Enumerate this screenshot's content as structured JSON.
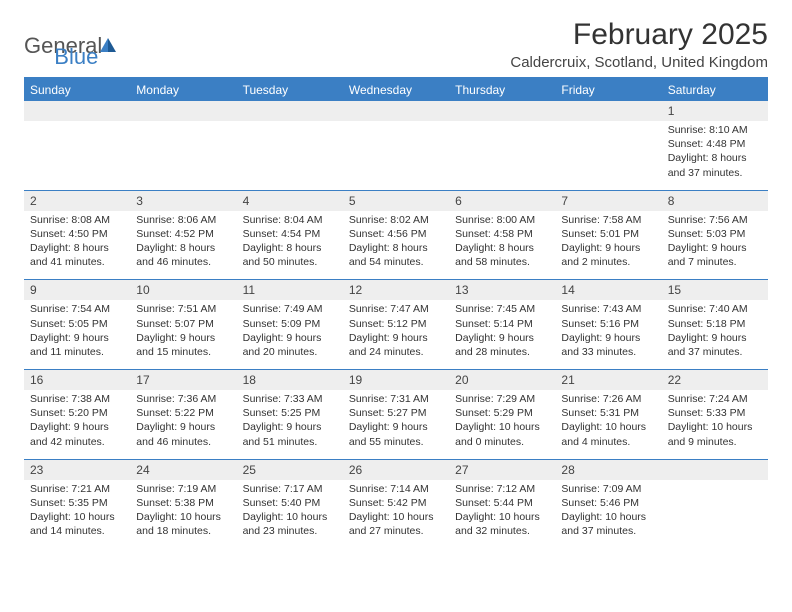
{
  "logo": {
    "text_general": "General",
    "text_blue": "Blue"
  },
  "header": {
    "month_title": "February 2025",
    "location": "Caldercruix, Scotland, United Kingdom"
  },
  "style": {
    "accent_color": "#3b7fc4",
    "header_bg": "#3b7fc4",
    "header_text": "#ffffff",
    "daynum_bg": "#eeeeee",
    "text_color": "#333333",
    "title_fontsize": 30,
    "location_fontsize": 15,
    "dayhead_fontsize": 12,
    "cell_fontsize": 10.5
  },
  "day_headers": [
    "Sunday",
    "Monday",
    "Tuesday",
    "Wednesday",
    "Thursday",
    "Friday",
    "Saturday"
  ],
  "weeks": [
    {
      "nums": [
        "",
        "",
        "",
        "",
        "",
        "",
        "1"
      ],
      "details": [
        "",
        "",
        "",
        "",
        "",
        "",
        "Sunrise: 8:10 AM\nSunset: 4:48 PM\nDaylight: 8 hours and 37 minutes."
      ]
    },
    {
      "nums": [
        "2",
        "3",
        "4",
        "5",
        "6",
        "7",
        "8"
      ],
      "details": [
        "Sunrise: 8:08 AM\nSunset: 4:50 PM\nDaylight: 8 hours and 41 minutes.",
        "Sunrise: 8:06 AM\nSunset: 4:52 PM\nDaylight: 8 hours and 46 minutes.",
        "Sunrise: 8:04 AM\nSunset: 4:54 PM\nDaylight: 8 hours and 50 minutes.",
        "Sunrise: 8:02 AM\nSunset: 4:56 PM\nDaylight: 8 hours and 54 minutes.",
        "Sunrise: 8:00 AM\nSunset: 4:58 PM\nDaylight: 8 hours and 58 minutes.",
        "Sunrise: 7:58 AM\nSunset: 5:01 PM\nDaylight: 9 hours and 2 minutes.",
        "Sunrise: 7:56 AM\nSunset: 5:03 PM\nDaylight: 9 hours and 7 minutes."
      ]
    },
    {
      "nums": [
        "9",
        "10",
        "11",
        "12",
        "13",
        "14",
        "15"
      ],
      "details": [
        "Sunrise: 7:54 AM\nSunset: 5:05 PM\nDaylight: 9 hours and 11 minutes.",
        "Sunrise: 7:51 AM\nSunset: 5:07 PM\nDaylight: 9 hours and 15 minutes.",
        "Sunrise: 7:49 AM\nSunset: 5:09 PM\nDaylight: 9 hours and 20 minutes.",
        "Sunrise: 7:47 AM\nSunset: 5:12 PM\nDaylight: 9 hours and 24 minutes.",
        "Sunrise: 7:45 AM\nSunset: 5:14 PM\nDaylight: 9 hours and 28 minutes.",
        "Sunrise: 7:43 AM\nSunset: 5:16 PM\nDaylight: 9 hours and 33 minutes.",
        "Sunrise: 7:40 AM\nSunset: 5:18 PM\nDaylight: 9 hours and 37 minutes."
      ]
    },
    {
      "nums": [
        "16",
        "17",
        "18",
        "19",
        "20",
        "21",
        "22"
      ],
      "details": [
        "Sunrise: 7:38 AM\nSunset: 5:20 PM\nDaylight: 9 hours and 42 minutes.",
        "Sunrise: 7:36 AM\nSunset: 5:22 PM\nDaylight: 9 hours and 46 minutes.",
        "Sunrise: 7:33 AM\nSunset: 5:25 PM\nDaylight: 9 hours and 51 minutes.",
        "Sunrise: 7:31 AM\nSunset: 5:27 PM\nDaylight: 9 hours and 55 minutes.",
        "Sunrise: 7:29 AM\nSunset: 5:29 PM\nDaylight: 10 hours and 0 minutes.",
        "Sunrise: 7:26 AM\nSunset: 5:31 PM\nDaylight: 10 hours and 4 minutes.",
        "Sunrise: 7:24 AM\nSunset: 5:33 PM\nDaylight: 10 hours and 9 minutes."
      ]
    },
    {
      "nums": [
        "23",
        "24",
        "25",
        "26",
        "27",
        "28",
        ""
      ],
      "details": [
        "Sunrise: 7:21 AM\nSunset: 5:35 PM\nDaylight: 10 hours and 14 minutes.",
        "Sunrise: 7:19 AM\nSunset: 5:38 PM\nDaylight: 10 hours and 18 minutes.",
        "Sunrise: 7:17 AM\nSunset: 5:40 PM\nDaylight: 10 hours and 23 minutes.",
        "Sunrise: 7:14 AM\nSunset: 5:42 PM\nDaylight: 10 hours and 27 minutes.",
        "Sunrise: 7:12 AM\nSunset: 5:44 PM\nDaylight: 10 hours and 32 minutes.",
        "Sunrise: 7:09 AM\nSunset: 5:46 PM\nDaylight: 10 hours and 37 minutes.",
        ""
      ]
    }
  ]
}
